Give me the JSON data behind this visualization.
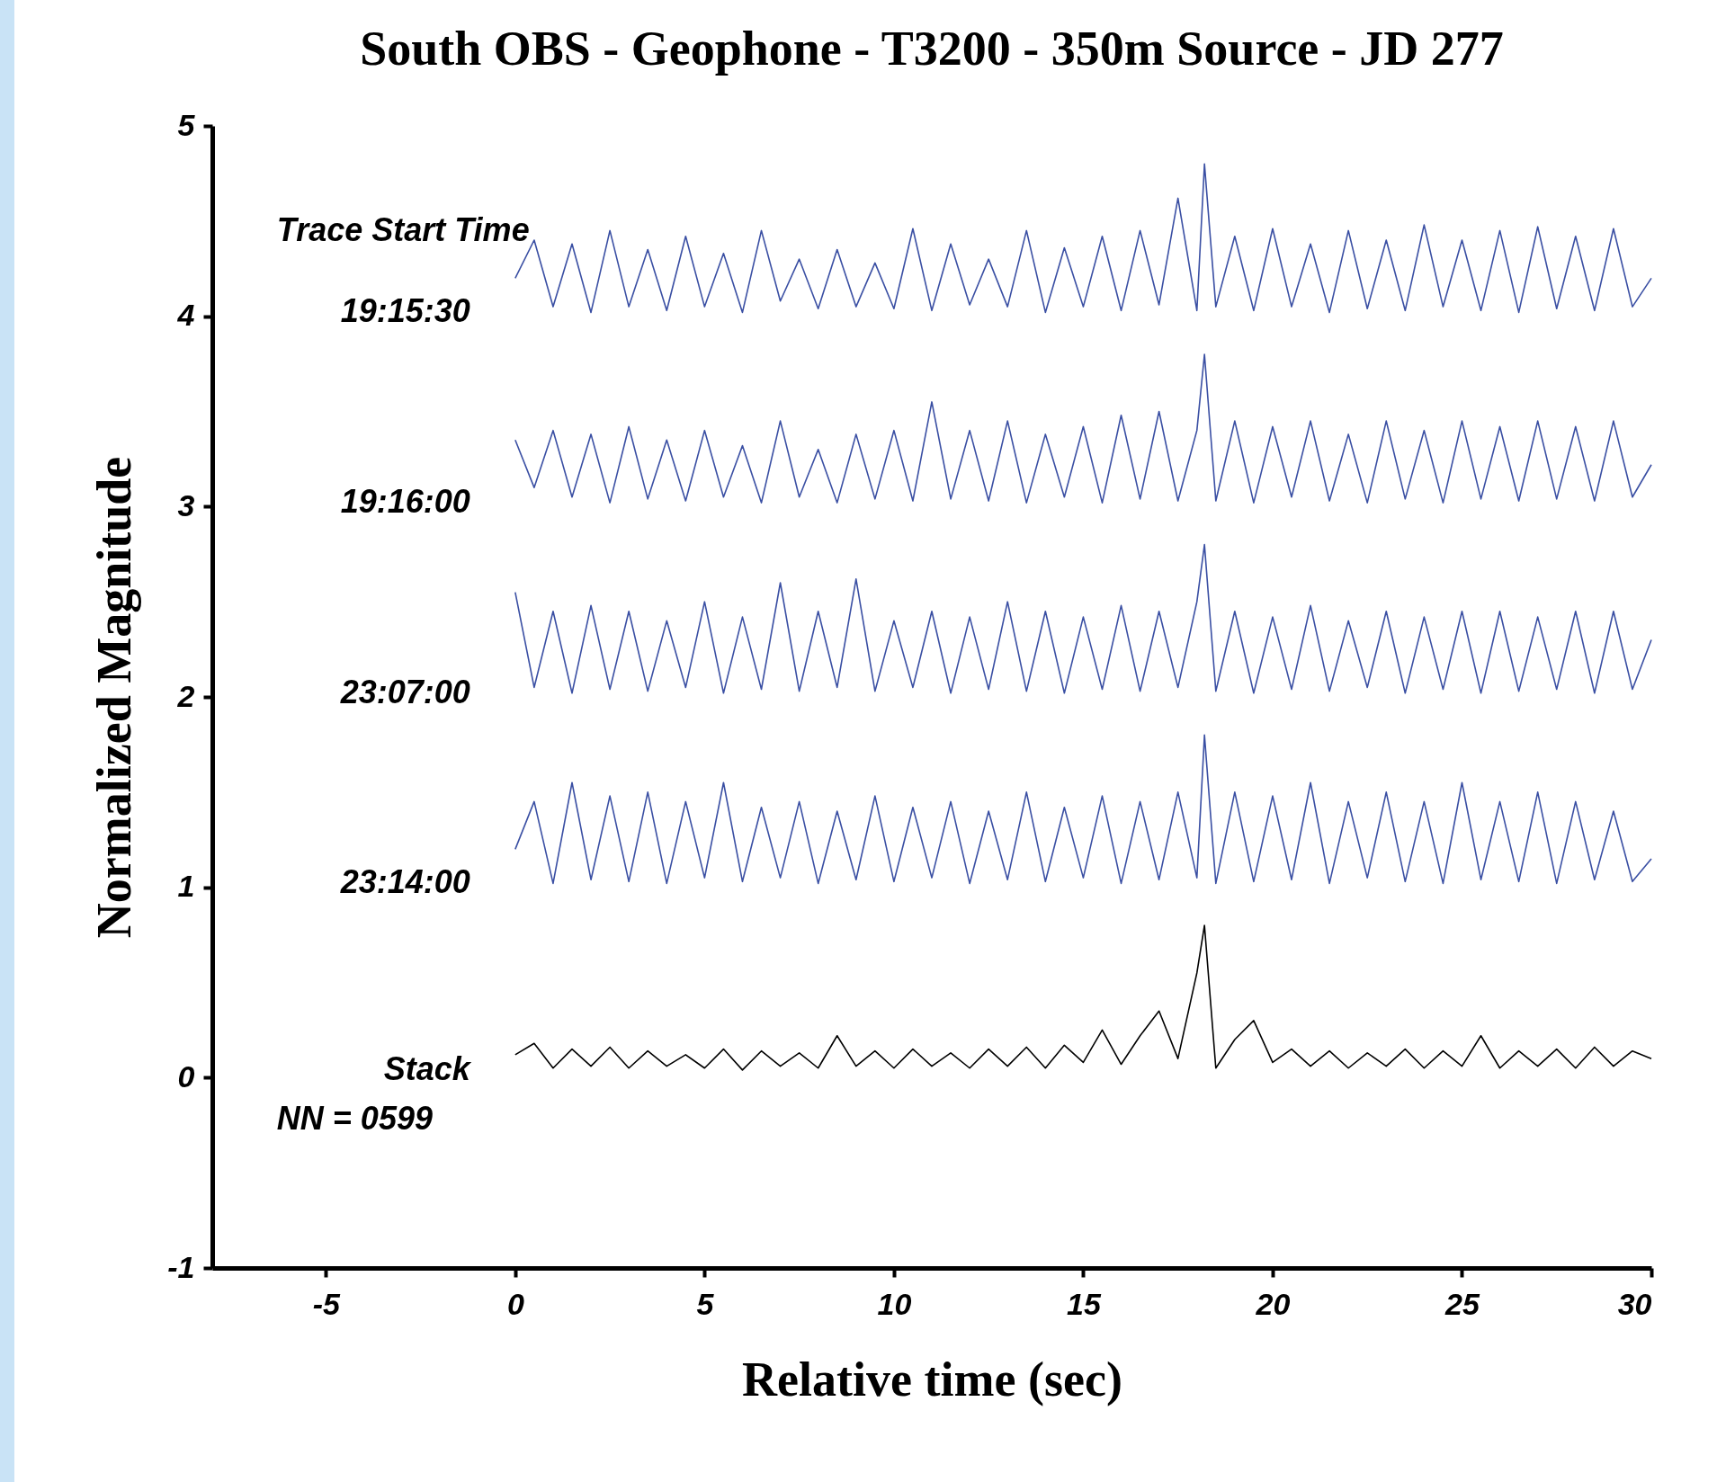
{
  "chart_data": {
    "type": "line",
    "title": "South OBS - Geophone - T3200 - 350m Source - JD 277",
    "xlabel": "Relative time (sec)",
    "ylabel": "Normalized Magnitude",
    "annotations": [
      "Trace Start Time",
      "NN = 0599"
    ],
    "xlim": [
      -8,
      30
    ],
    "xticks": [
      -5,
      0,
      5,
      10,
      15,
      20,
      25,
      30
    ],
    "ylim": [
      -1,
      5
    ],
    "yticks": [
      -1,
      0,
      1,
      2,
      3,
      4,
      5
    ],
    "grid": false,
    "legend": false,
    "marker": "none",
    "line_style": "solid",
    "x": [
      0,
      0.5,
      1,
      1.5,
      2,
      2.5,
      3,
      3.5,
      4,
      4.5,
      5,
      5.5,
      6,
      6.5,
      7,
      7.5,
      8,
      8.5,
      9,
      9.5,
      10,
      10.5,
      11,
      11.5,
      12,
      12.5,
      13,
      13.5,
      14,
      14.5,
      15,
      15.5,
      16,
      16.5,
      17,
      17.5,
      18,
      18.2,
      18.5,
      19,
      19.5,
      20,
      20.5,
      21,
      21.5,
      22,
      22.5,
      23,
      23.5,
      24,
      24.5,
      25,
      25.5,
      26,
      26.5,
      27,
      27.5,
      28,
      28.5,
      29,
      29.5,
      30
    ],
    "series": [
      {
        "name": "19:15:30",
        "color": "#3a4fa3",
        "values": [
          4.2,
          4.4,
          4.05,
          4.38,
          4.02,
          4.45,
          4.05,
          4.35,
          4.03,
          4.42,
          4.05,
          4.33,
          4.02,
          4.45,
          4.08,
          4.3,
          4.04,
          4.35,
          4.05,
          4.28,
          4.04,
          4.46,
          4.03,
          4.38,
          4.06,
          4.3,
          4.05,
          4.45,
          4.02,
          4.36,
          4.05,
          4.42,
          4.03,
          4.45,
          4.06,
          4.62,
          4.03,
          4.8,
          4.05,
          4.42,
          4.03,
          4.46,
          4.05,
          4.38,
          4.02,
          4.45,
          4.04,
          4.4,
          4.03,
          4.48,
          4.05,
          4.4,
          4.03,
          4.45,
          4.02,
          4.47,
          4.04,
          4.42,
          4.03,
          4.46,
          4.05,
          4.2
        ]
      },
      {
        "name": "19:16:00",
        "color": "#3a4fa3",
        "values": [
          3.35,
          3.1,
          3.4,
          3.05,
          3.38,
          3.02,
          3.42,
          3.04,
          3.35,
          3.03,
          3.4,
          3.05,
          3.32,
          3.02,
          3.45,
          3.05,
          3.3,
          3.02,
          3.38,
          3.04,
          3.4,
          3.03,
          3.55,
          3.04,
          3.4,
          3.03,
          3.45,
          3.02,
          3.38,
          3.05,
          3.42,
          3.02,
          3.48,
          3.04,
          3.5,
          3.03,
          3.4,
          3.8,
          3.03,
          3.45,
          3.02,
          3.42,
          3.05,
          3.45,
          3.03,
          3.38,
          3.02,
          3.45,
          3.04,
          3.4,
          3.02,
          3.45,
          3.04,
          3.42,
          3.03,
          3.45,
          3.04,
          3.42,
          3.03,
          3.45,
          3.05,
          3.22
        ]
      },
      {
        "name": "23:07:00",
        "color": "#3a4fa3",
        "values": [
          2.55,
          2.05,
          2.45,
          2.02,
          2.48,
          2.04,
          2.45,
          2.03,
          2.4,
          2.05,
          2.5,
          2.02,
          2.42,
          2.04,
          2.6,
          2.03,
          2.45,
          2.05,
          2.62,
          2.03,
          2.4,
          2.05,
          2.45,
          2.02,
          2.42,
          2.04,
          2.5,
          2.03,
          2.45,
          2.02,
          2.42,
          2.04,
          2.48,
          2.03,
          2.45,
          2.05,
          2.5,
          2.8,
          2.03,
          2.45,
          2.02,
          2.42,
          2.04,
          2.48,
          2.03,
          2.4,
          2.05,
          2.45,
          2.02,
          2.42,
          2.04,
          2.45,
          2.02,
          2.45,
          2.03,
          2.42,
          2.04,
          2.45,
          2.02,
          2.45,
          2.04,
          2.3
        ]
      },
      {
        "name": "23:14:00",
        "color": "#3a4fa3",
        "values": [
          1.2,
          1.45,
          1.02,
          1.55,
          1.04,
          1.48,
          1.03,
          1.5,
          1.02,
          1.45,
          1.05,
          1.55,
          1.03,
          1.42,
          1.05,
          1.45,
          1.02,
          1.4,
          1.04,
          1.48,
          1.03,
          1.42,
          1.05,
          1.45,
          1.02,
          1.4,
          1.04,
          1.5,
          1.03,
          1.42,
          1.05,
          1.48,
          1.02,
          1.45,
          1.04,
          1.5,
          1.05,
          1.8,
          1.02,
          1.5,
          1.03,
          1.48,
          1.04,
          1.55,
          1.02,
          1.45,
          1.05,
          1.5,
          1.03,
          1.45,
          1.02,
          1.55,
          1.04,
          1.45,
          1.03,
          1.5,
          1.02,
          1.45,
          1.04,
          1.4,
          1.03,
          1.15
        ]
      },
      {
        "name": "Stack",
        "color": "#000000",
        "values": [
          0.12,
          0.18,
          0.05,
          0.15,
          0.06,
          0.16,
          0.05,
          0.14,
          0.06,
          0.12,
          0.05,
          0.15,
          0.04,
          0.14,
          0.06,
          0.13,
          0.05,
          0.22,
          0.06,
          0.14,
          0.05,
          0.15,
          0.06,
          0.13,
          0.05,
          0.15,
          0.06,
          0.16,
          0.05,
          0.17,
          0.08,
          0.25,
          0.07,
          0.22,
          0.35,
          0.1,
          0.55,
          0.8,
          0.05,
          0.2,
          0.3,
          0.08,
          0.15,
          0.06,
          0.14,
          0.05,
          0.13,
          0.06,
          0.15,
          0.05,
          0.14,
          0.06,
          0.22,
          0.05,
          0.14,
          0.06,
          0.15,
          0.05,
          0.16,
          0.06,
          0.14,
          0.1
        ]
      }
    ]
  }
}
